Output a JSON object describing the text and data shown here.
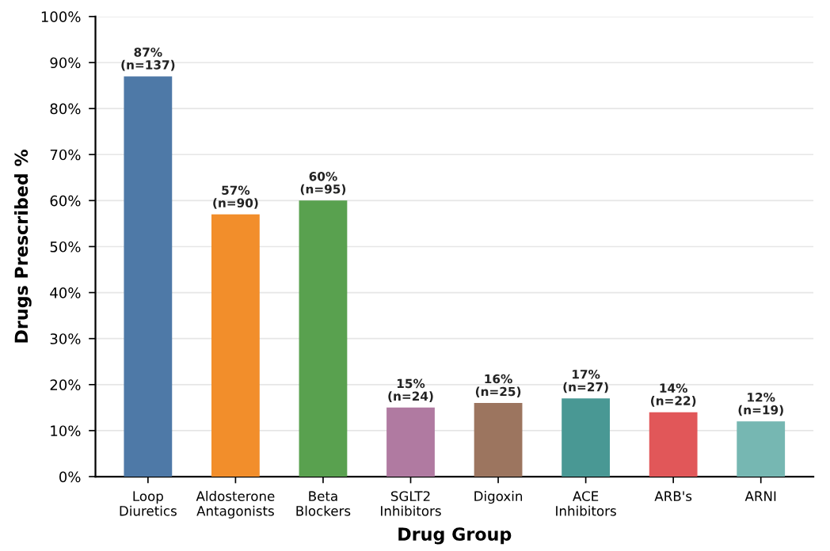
{
  "chart_data": {
    "type": "bar",
    "xlabel": "Drug Group",
    "ylabel": "Drugs Prescribed %",
    "categories": [
      "Loop\nDiuretics",
      "Aldosterone\nAntagonists",
      "Beta\nBlockers",
      "SGLT2\nInhibitors",
      "Digoxin",
      "ACE\nInhibitors",
      "ARB's",
      "ARNI"
    ],
    "values": [
      87,
      57,
      60,
      15,
      16,
      17,
      14,
      12
    ],
    "colors": [
      "#4e79a7",
      "#f28e2b",
      "#59a14f",
      "#b07aa1",
      "#9c755f",
      "#499894",
      "#e15759",
      "#76b7b2"
    ],
    "value_labels": [
      "87%\n(n=137)",
      "57%\n(n=90)",
      "60%\n(n=95)",
      "15%\n(n=24)",
      "16%\n(n=25)",
      "17%\n(n=27)",
      "14%\n(n=22)",
      "12%\n(n=19)"
    ],
    "ylim": [
      0,
      100
    ],
    "yticks": [
      {
        "value": 0,
        "label": "0%"
      },
      {
        "value": 10,
        "label": "10%"
      },
      {
        "value": 20,
        "label": "20%"
      },
      {
        "value": 30,
        "label": "30%"
      },
      {
        "value": 40,
        "label": "40%"
      },
      {
        "value": 50,
        "label": "50%"
      },
      {
        "value": 60,
        "label": "60%"
      },
      {
        "value": 70,
        "label": "70%"
      },
      {
        "value": 80,
        "label": "80%"
      },
      {
        "value": 90,
        "label": "90%"
      },
      {
        "value": 100,
        "label": "100%"
      }
    ],
    "grid": "y",
    "legend": false
  }
}
